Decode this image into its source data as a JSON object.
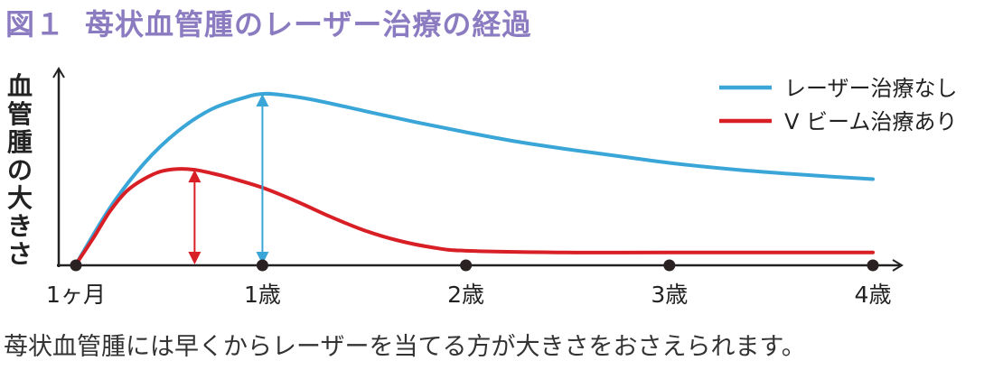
{
  "page_title": {
    "figure_number": "図１",
    "text": "苺状血管腫のレーザー治療の経過"
  },
  "caption": "苺状血管腫には早くからレーザーを当てる方が大きさをおさえられます。",
  "chart_data": {
    "type": "line",
    "ylabel": "血管腫の大きさ",
    "xlabel": "",
    "x_ticks": [
      "1ヶ月",
      "1歳",
      "2歳",
      "3歳",
      "4歳"
    ],
    "x_tick_months": [
      1,
      12,
      24,
      36,
      48
    ],
    "xlim": [
      1,
      50
    ],
    "ylim": [
      0,
      110
    ],
    "y_ticks_shown": false,
    "grid": false,
    "legend_position": "top-right",
    "series": [
      {
        "name": "レーザー治療なし",
        "color": "#3aa6d8",
        "x": [
          1,
          3,
          5,
          7,
          9,
          11,
          12,
          13,
          15,
          18,
          21,
          24,
          27,
          30,
          33,
          36,
          40,
          44,
          48
        ],
        "y": [
          0,
          33,
          59,
          78,
          91,
          98,
          100,
          99.5,
          96.5,
          90,
          83.5,
          77.5,
          72,
          67.5,
          63.5,
          59.5,
          55.5,
          52.5,
          50
        ]
      },
      {
        "name": "V ビーム治療あり",
        "color": "#d81f26",
        "x": [
          1,
          2,
          3,
          4,
          5,
          6,
          7,
          8,
          9,
          10,
          12,
          14,
          16,
          18,
          20,
          22,
          24,
          30,
          36,
          42,
          48
        ],
        "y": [
          0,
          15,
          31,
          43,
          50,
          54.5,
          56,
          55.5,
          53.5,
          51,
          45,
          37,
          28,
          20,
          14,
          10,
          8,
          7,
          7,
          7,
          7
        ]
      }
    ],
    "annotations": [
      {
        "type": "double-arrow",
        "x": 12,
        "y_from": 0,
        "y_to": 100,
        "color": "#3aa6d8"
      },
      {
        "type": "double-arrow",
        "x": 8,
        "y_from": 0,
        "y_to": 55.5,
        "color": "#d81f26"
      }
    ]
  }
}
